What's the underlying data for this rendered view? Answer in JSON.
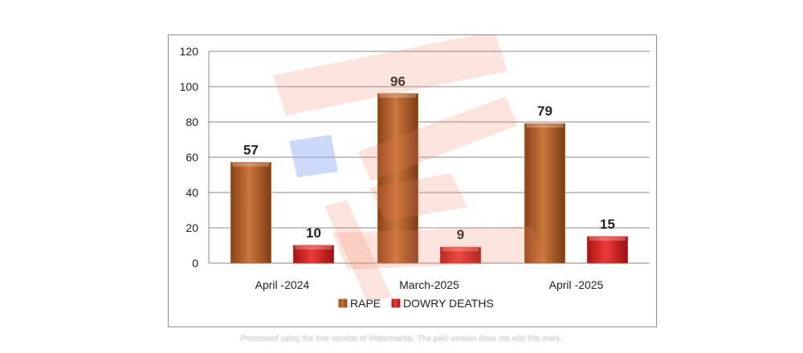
{
  "chart_data": {
    "type": "bar",
    "categories": [
      "April -2024",
      "March-2025",
      "April  -2025"
    ],
    "series": [
      {
        "name": "RAPE",
        "values": [
          57,
          96,
          79
        ],
        "color": "#b8602a"
      },
      {
        "name": "DOWRY DEATHS",
        "values": [
          10,
          9,
          15
        ],
        "color": "#d42a2a"
      }
    ],
    "title": "",
    "xlabel": "",
    "ylabel": "",
    "ylim": [
      0,
      120
    ],
    "yticks": [
      0,
      20,
      40,
      60,
      80,
      100,
      120
    ],
    "grid": true,
    "legend_position": "bottom"
  },
  "footer_note": "Processed using the free version of Watermarkly. The paid version does not add this mark."
}
